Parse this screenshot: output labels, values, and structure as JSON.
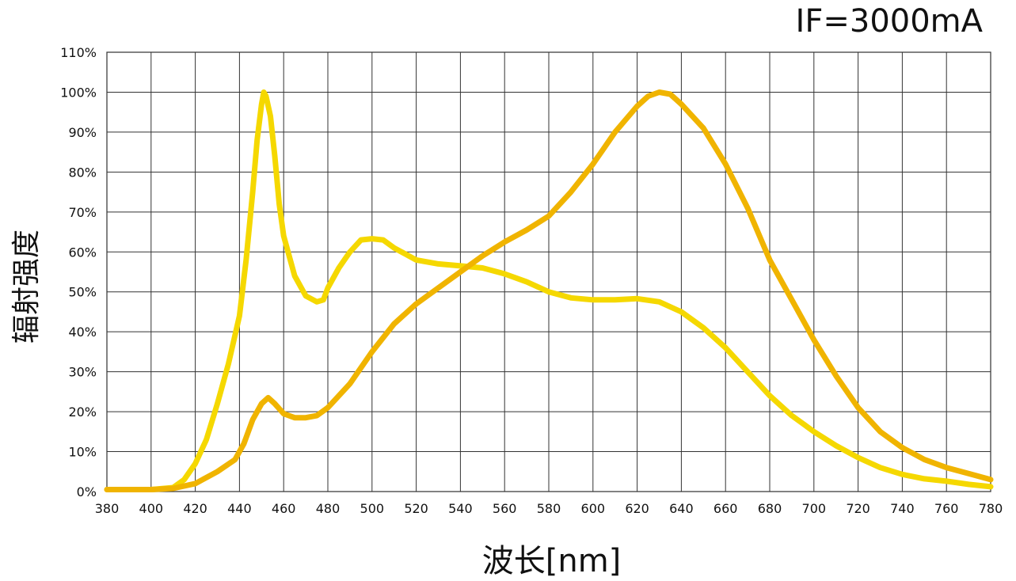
{
  "chart_data": {
    "type": "line",
    "title": "",
    "annotation": "IF=3000mA",
    "xlabel": "波长[nm]",
    "ylabel": "辐射强度",
    "xlim": [
      380,
      780
    ],
    "ylim": [
      0,
      110
    ],
    "x_ticks": [
      380,
      400,
      420,
      440,
      460,
      480,
      500,
      520,
      540,
      560,
      580,
      600,
      620,
      640,
      660,
      680,
      700,
      720,
      740,
      760,
      780
    ],
    "y_ticks": [
      0,
      10,
      20,
      30,
      40,
      50,
      60,
      70,
      80,
      90,
      100,
      110
    ],
    "y_tick_labels": [
      "0%",
      "10%",
      "20%",
      "30%",
      "40%",
      "50%",
      "60%",
      "70%",
      "80%",
      "90%",
      "100%",
      "110%"
    ],
    "grid": true,
    "series": [
      {
        "color": "#f5d800",
        "points": [
          [
            380,
            0.5
          ],
          [
            400,
            0.5
          ],
          [
            410,
            1
          ],
          [
            415,
            3
          ],
          [
            420,
            7
          ],
          [
            425,
            13
          ],
          [
            430,
            22
          ],
          [
            435,
            32
          ],
          [
            440,
            44
          ],
          [
            443,
            58
          ],
          [
            446,
            75
          ],
          [
            448,
            88
          ],
          [
            450,
            97
          ],
          [
            451,
            100
          ],
          [
            452,
            99
          ],
          [
            454,
            94
          ],
          [
            456,
            84
          ],
          [
            458,
            72
          ],
          [
            460,
            64
          ],
          [
            465,
            54
          ],
          [
            470,
            49
          ],
          [
            475,
            47.5
          ],
          [
            478,
            48
          ],
          [
            480,
            51
          ],
          [
            485,
            56
          ],
          [
            490,
            60
          ],
          [
            495,
            63
          ],
          [
            500,
            63.3
          ],
          [
            505,
            63
          ],
          [
            510,
            61
          ],
          [
            515,
            59.5
          ],
          [
            520,
            58
          ],
          [
            530,
            57
          ],
          [
            540,
            56.5
          ],
          [
            550,
            56
          ],
          [
            560,
            54.5
          ],
          [
            570,
            52.5
          ],
          [
            580,
            50
          ],
          [
            590,
            48.5
          ],
          [
            600,
            48
          ],
          [
            610,
            48
          ],
          [
            620,
            48.3
          ],
          [
            630,
            47.5
          ],
          [
            640,
            45
          ],
          [
            650,
            41
          ],
          [
            660,
            36
          ],
          [
            670,
            30
          ],
          [
            680,
            24
          ],
          [
            690,
            19
          ],
          [
            700,
            15
          ],
          [
            710,
            11.5
          ],
          [
            720,
            8.5
          ],
          [
            730,
            6
          ],
          [
            740,
            4.3
          ],
          [
            750,
            3.2
          ],
          [
            760,
            2.6
          ],
          [
            770,
            1.8
          ],
          [
            780,
            1.2
          ]
        ]
      },
      {
        "color": "#f0b400",
        "points": [
          [
            380,
            0.5
          ],
          [
            400,
            0.5
          ],
          [
            410,
            0.8
          ],
          [
            420,
            2
          ],
          [
            430,
            5
          ],
          [
            438,
            8
          ],
          [
            442,
            12
          ],
          [
            446,
            18
          ],
          [
            450,
            22
          ],
          [
            453,
            23.5
          ],
          [
            456,
            22
          ],
          [
            460,
            19.5
          ],
          [
            465,
            18.5
          ],
          [
            470,
            18.5
          ],
          [
            475,
            19
          ],
          [
            480,
            21
          ],
          [
            490,
            27
          ],
          [
            500,
            35
          ],
          [
            510,
            42
          ],
          [
            520,
            47
          ],
          [
            530,
            51
          ],
          [
            540,
            55
          ],
          [
            550,
            59
          ],
          [
            560,
            62.5
          ],
          [
            570,
            65.5
          ],
          [
            580,
            69
          ],
          [
            590,
            75
          ],
          [
            600,
            82
          ],
          [
            610,
            90
          ],
          [
            620,
            96.5
          ],
          [
            625,
            99
          ],
          [
            630,
            100
          ],
          [
            635,
            99.5
          ],
          [
            640,
            97
          ],
          [
            650,
            91
          ],
          [
            660,
            82
          ],
          [
            670,
            71
          ],
          [
            680,
            58
          ],
          [
            690,
            48
          ],
          [
            700,
            38
          ],
          [
            710,
            29
          ],
          [
            720,
            21
          ],
          [
            730,
            15
          ],
          [
            740,
            11
          ],
          [
            750,
            8
          ],
          [
            760,
            6
          ],
          [
            770,
            4.5
          ],
          [
            780,
            3
          ]
        ]
      }
    ]
  }
}
